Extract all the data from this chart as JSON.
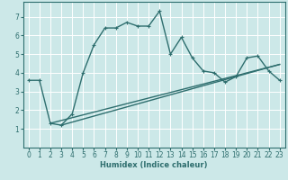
{
  "xlabel": "Humidex (Indice chaleur)",
  "ylabel": "",
  "bg_color": "#cce8e8",
  "grid_color": "#ffffff",
  "line_color": "#2e6e6e",
  "xlim": [
    -0.5,
    23.5
  ],
  "ylim": [
    0,
    7.8
  ],
  "yticks": [
    1,
    2,
    3,
    4,
    5,
    6,
    7
  ],
  "xticks": [
    0,
    1,
    2,
    3,
    4,
    5,
    6,
    7,
    8,
    9,
    10,
    11,
    12,
    13,
    14,
    15,
    16,
    17,
    18,
    19,
    20,
    21,
    22,
    23
  ],
  "curve_x": [
    0,
    1,
    2,
    3,
    4,
    5,
    6,
    7,
    8,
    9,
    10,
    11,
    12,
    13,
    14,
    15,
    16,
    17,
    18,
    19,
    20,
    21,
    22,
    23
  ],
  "curve_y": [
    3.6,
    3.6,
    1.3,
    1.2,
    1.8,
    4.0,
    5.5,
    6.4,
    6.4,
    6.7,
    6.5,
    6.5,
    7.3,
    5.0,
    5.9,
    4.8,
    4.1,
    4.0,
    3.5,
    3.8,
    4.8,
    4.9,
    4.1,
    3.6
  ],
  "trend1_x": [
    2,
    23
  ],
  "trend1_y": [
    1.3,
    4.45
  ],
  "trend2_x": [
    3,
    23
  ],
  "trend2_y": [
    1.2,
    4.45
  ],
  "marker_size": 3,
  "linewidth": 1.0,
  "tick_fontsize": 5.5
}
